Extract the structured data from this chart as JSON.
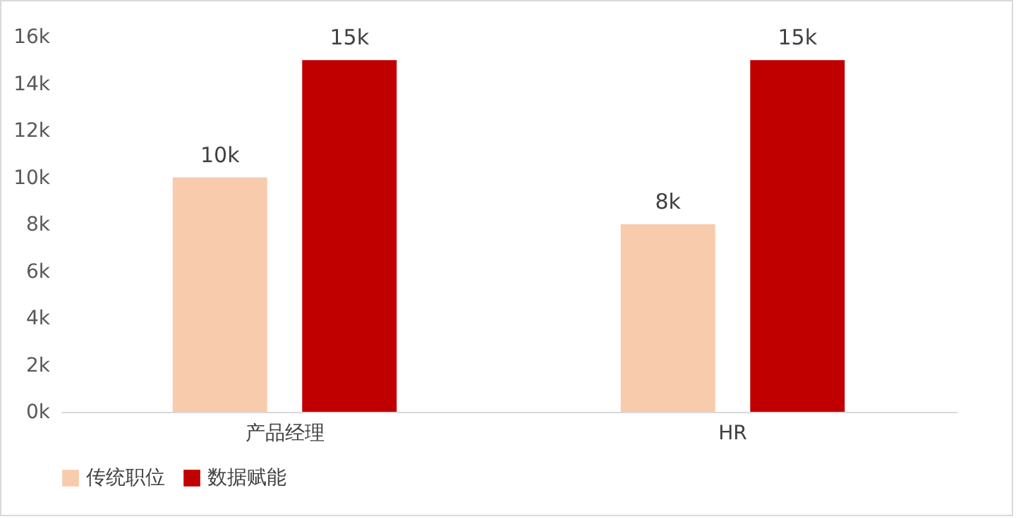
{
  "chart_data": {
    "type": "bar",
    "categories": [
      "产品经理",
      "HR"
    ],
    "series": [
      {
        "name": "传统职位",
        "color": "#f8cbad",
        "values": [
          10000,
          8000
        ],
        "value_labels": [
          "10k",
          "8k"
        ]
      },
      {
        "name": "数据赋能",
        "color": "#c00000",
        "values": [
          15000,
          15000
        ],
        "value_labels": [
          "15k",
          "15k"
        ]
      }
    ],
    "ylim": [
      0,
      16000
    ],
    "yticks": [
      {
        "value": 0,
        "label": "0k"
      },
      {
        "value": 2000,
        "label": "2k"
      },
      {
        "value": 4000,
        "label": "4k"
      },
      {
        "value": 6000,
        "label": "6k"
      },
      {
        "value": 8000,
        "label": "8k"
      },
      {
        "value": 10000,
        "label": "10k"
      },
      {
        "value": 12000,
        "label": "12k"
      },
      {
        "value": 14000,
        "label": "14k"
      },
      {
        "value": 16000,
        "label": "16k"
      }
    ],
    "legend": "bottom",
    "grid": false
  }
}
